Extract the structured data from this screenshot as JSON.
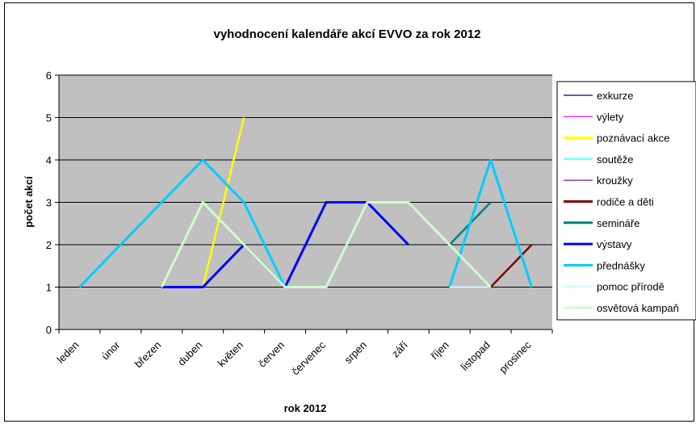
{
  "chart_data": {
    "type": "line",
    "title": "vyhodnocení kalendáře akcí EVVO za rok 2012",
    "xlabel": "rok 2012",
    "ylabel": "počet akcí",
    "ylim": [
      0,
      6
    ],
    "yticks": [
      0,
      1,
      2,
      3,
      4,
      5,
      6
    ],
    "categories": [
      "leden",
      "únor",
      "březen",
      "duben",
      "květen",
      "červen",
      "červenec",
      "srpen",
      "září",
      "říjen",
      "listopad",
      "prosinec"
    ],
    "grid": true,
    "legend_position": "right",
    "plot_background": "#c0c0c0",
    "series": [
      {
        "name": "exkurze",
        "color": "#000080",
        "values": [
          null,
          null,
          null,
          null,
          null,
          null,
          null,
          null,
          null,
          null,
          null,
          null
        ]
      },
      {
        "name": "výlety",
        "color": "#ff00ff",
        "values": [
          null,
          null,
          null,
          null,
          null,
          null,
          null,
          null,
          null,
          null,
          null,
          null
        ]
      },
      {
        "name": "poznávací akce",
        "color": "#ffff00",
        "values": [
          null,
          null,
          null,
          1,
          5,
          null,
          null,
          null,
          null,
          null,
          null,
          null
        ]
      },
      {
        "name": "soutěže",
        "color": "#00ffff",
        "values": [
          null,
          null,
          null,
          null,
          null,
          null,
          null,
          null,
          null,
          null,
          null,
          null
        ]
      },
      {
        "name": "kroužky",
        "color": "#800080",
        "values": [
          null,
          null,
          null,
          null,
          null,
          null,
          null,
          null,
          null,
          null,
          null,
          null
        ]
      },
      {
        "name": "rodiče a děti",
        "color": "#800000",
        "values": [
          null,
          null,
          null,
          null,
          null,
          null,
          null,
          null,
          null,
          1,
          1,
          2
        ]
      },
      {
        "name": "semináře",
        "color": "#008080",
        "values": [
          null,
          null,
          null,
          null,
          null,
          null,
          null,
          null,
          null,
          2,
          3,
          null
        ]
      },
      {
        "name": "výstavy",
        "color": "#0000ff",
        "values": [
          null,
          null,
          1,
          1,
          2,
          1,
          3,
          3,
          2,
          null,
          null,
          null
        ]
      },
      {
        "name": "přednášky",
        "color": "#00ccff",
        "values": [
          1,
          2,
          3,
          4,
          3,
          1,
          null,
          null,
          null,
          1,
          4,
          1
        ]
      },
      {
        "name": "pomoc přírodě",
        "color": "#ccffff",
        "values": [
          null,
          null,
          null,
          null,
          null,
          null,
          null,
          null,
          null,
          1,
          1,
          null
        ]
      },
      {
        "name": "osvětová kampaň",
        "color": "#ccffcc",
        "values": [
          null,
          null,
          1,
          3,
          2,
          1,
          1,
          3,
          3,
          2,
          1,
          null
        ]
      }
    ]
  }
}
